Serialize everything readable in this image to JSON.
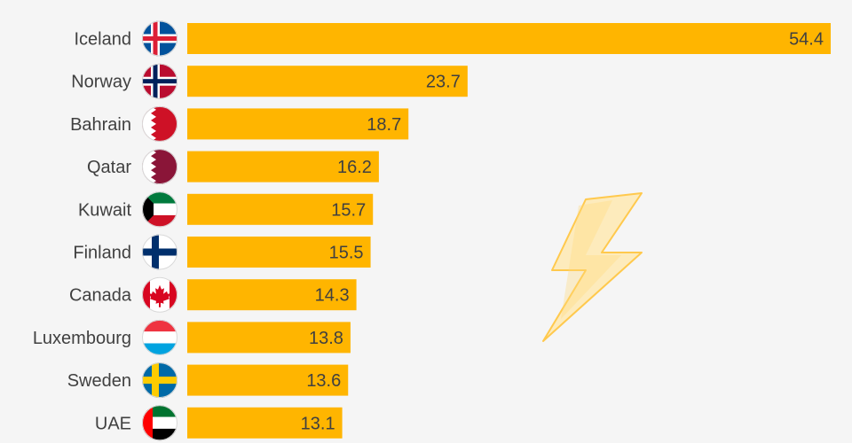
{
  "chart_data": {
    "type": "bar",
    "orientation": "horizontal",
    "categories": [
      "Iceland",
      "Norway",
      "Bahrain",
      "Qatar",
      "Kuwait",
      "Finland",
      "Canada",
      "Luxembourg",
      "Sweden",
      "UAE"
    ],
    "values": [
      54.4,
      23.7,
      18.7,
      16.2,
      15.7,
      15.5,
      14.3,
      13.8,
      13.6,
      13.1
    ],
    "value_labels": [
      "54.4",
      "23.7",
      "18.7",
      "16.2",
      "15.7",
      "15.5",
      "14.3",
      "13.8",
      "13.6",
      "13.1"
    ],
    "bar_color": "#ffb500",
    "text_color": "#404040",
    "background_color": "#f5f5f5",
    "flag_icons": [
      "iceland-flag-icon",
      "norway-flag-icon",
      "bahrain-flag-icon",
      "qatar-flag-icon",
      "kuwait-flag-icon",
      "finland-flag-icon",
      "canada-flag-icon",
      "luxembourg-flag-icon",
      "sweden-flag-icon",
      "uae-flag-icon"
    ],
    "decoration_icon": "lightning-bolt-icon",
    "grid": false,
    "legend": "none"
  }
}
